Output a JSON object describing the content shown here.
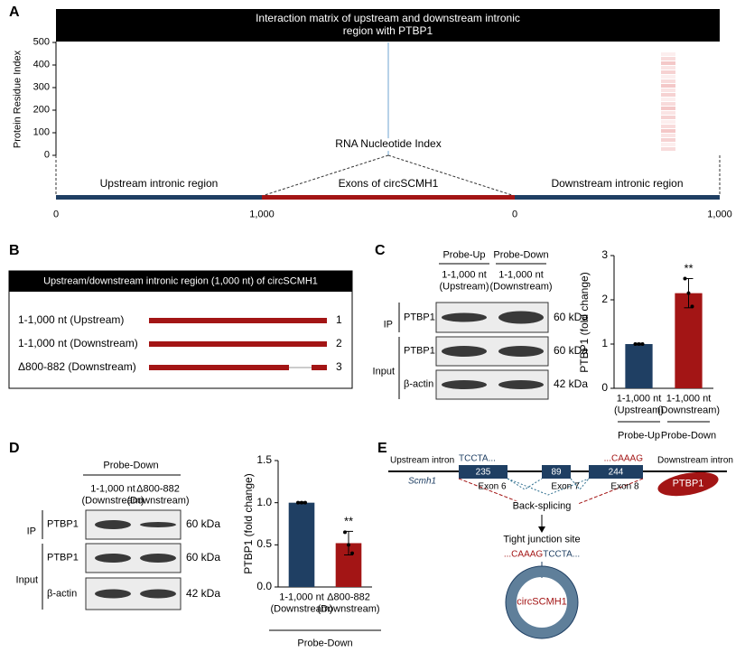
{
  "panels": [
    "A",
    "B",
    "C",
    "D",
    "E"
  ],
  "chart_data": [
    {
      "type": "heatmap",
      "title": "Interaction matrix of upstream and downstream intronic region with PTBP1",
      "ylabel": "Protein Residue Index",
      "xlabel": "RNA Nucleotide Index",
      "ylim": [
        0,
        500
      ],
      "yticks": [
        0,
        100,
        200,
        300,
        400,
        500
      ],
      "x_regions": [
        {
          "label": "Upstream intronic region",
          "color": "#1f3f63",
          "xlim": [
            0,
            1000
          ],
          "xticks": [
            0,
            {
              "value": 1000,
              "label": "1,000"
            }
          ]
        },
        {
          "label": "Exons of circSCMH1",
          "color": "#a31515"
        },
        {
          "label": "Downstream intronic region",
          "color": "#1f3f63",
          "xlim": [
            0,
            1000
          ],
          "xticks": [
            0,
            {
              "value": 1000,
              "label": "1,000"
            }
          ]
        }
      ]
    },
    {
      "type": "bar",
      "ylabel": "PTBP1 (fold change)",
      "ylim": [
        0,
        3
      ],
      "yticks": [
        0,
        1,
        2,
        3
      ],
      "categories": [
        "1-1,000 nt\n(Upstream)",
        "1-1,000 nt\n(Downstream)"
      ],
      "values": [
        1.0,
        2.15
      ],
      "errors": [
        0.02,
        0.33
      ],
      "points": [
        [
          1,
          1,
          1
        ],
        [
          2.48,
          2.15,
          1.85
        ]
      ],
      "colors": [
        "#1f3f63",
        "#a31515"
      ],
      "significance": [
        null,
        "**"
      ],
      "groups": [
        "Probe-Up",
        "Probe-Down"
      ]
    },
    {
      "type": "bar",
      "ylabel": "PTBP1 (fold change)",
      "ylim": [
        0,
        1.5
      ],
      "yticks": [
        {
          "value": 0,
          "label": "0.0"
        },
        {
          "value": 0.5,
          "label": "0.5"
        },
        {
          "value": 1,
          "label": "1.0"
        },
        {
          "value": 1.5,
          "label": "1.5"
        }
      ],
      "categories": [
        "1-1,000 nt\n(Downstream)",
        "Δ800-882\n(Downstream)"
      ],
      "values": [
        1.0,
        0.52
      ],
      "errors": [
        0.01,
        0.14
      ],
      "points": [
        [
          1,
          1,
          1
        ],
        [
          0.65,
          0.5,
          0.4
        ]
      ],
      "colors": [
        "#1f3f63",
        "#a31515"
      ],
      "significance": [
        null,
        "**"
      ],
      "group": "Probe-Down"
    }
  ],
  "panel_b": {
    "title": "Upstream/downstream intronic region (1,000 nt) of circSCMH1",
    "rows": [
      {
        "label": "1-1,000 nt (Upstream)",
        "number": 1
      },
      {
        "label": "1-1,000 nt (Downstream)",
        "number": 2
      },
      {
        "label": "Δ800-882 (Downstream)",
        "number": 3
      }
    ]
  },
  "blot_c": {
    "headers": [
      "Probe-Up",
      "Probe-Down"
    ],
    "lanes": [
      "1-1,000 nt\n(Upstream)",
      "1-1,000 nt\n(Downstream)"
    ],
    "groups": [
      "IP",
      "Input"
    ],
    "rows": [
      {
        "label": "PTBP1",
        "size": "60 kDa"
      },
      {
        "label": "PTBP1",
        "size": "60 kDa"
      },
      {
        "label": "β-actin",
        "size": "42 kDa"
      }
    ]
  },
  "blot_d": {
    "header": "Probe-Down",
    "lanes": [
      "1-1,000 nt\n(Downstream)",
      "Δ800-882\n(Downstream)"
    ],
    "groups": [
      "IP",
      "Input"
    ],
    "rows": [
      {
        "label": "PTBP1",
        "size": "60 kDa"
      },
      {
        "label": "PTBP1",
        "size": "60 kDa"
      },
      {
        "label": "β-actin",
        "size": "42 kDa"
      }
    ]
  },
  "panel_e": {
    "upstream_intron": "Upstream intron",
    "downstream_intron": "Downstream intron",
    "gene": "Scmh1",
    "seq_start": "TCCTA...",
    "seq_end": "...CAAAG",
    "exons": [
      {
        "length": 235,
        "label": "Exon 6"
      },
      {
        "length": 89,
        "label": "Exon 7"
      },
      {
        "length": 244,
        "label": "Exon 8"
      }
    ],
    "protein": "PTBP1",
    "step": "Back-splicing",
    "junction_label": "Tight junction site",
    "junction_seq": [
      "...CAAAG",
      "TCCTA..."
    ],
    "product": "circSCMH1"
  }
}
